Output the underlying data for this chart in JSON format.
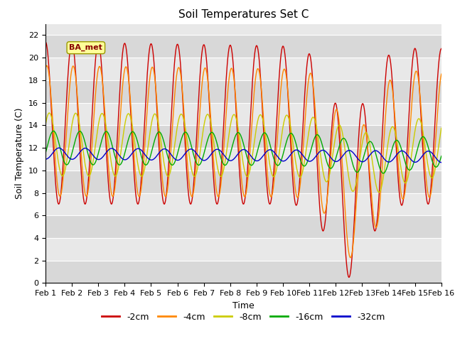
{
  "title": "Soil Temperatures Set C",
  "xlabel": "Time",
  "ylabel": "Soil Temperature (C)",
  "ylim": [
    0,
    23
  ],
  "yticks": [
    0,
    2,
    4,
    6,
    8,
    10,
    12,
    14,
    16,
    18,
    20,
    22
  ],
  "x_labels": [
    "Feb 1",
    "Feb 2",
    "Feb 3",
    "Feb 4",
    "Feb 5",
    "Feb 6",
    "Feb 7",
    "Feb 8",
    "Feb 9",
    "Feb 10",
    "Feb 11",
    "Feb 12",
    "Feb 13",
    "Feb 14",
    "Feb 15",
    "Feb 16"
  ],
  "colors": {
    "-2cm": "#cc0000",
    "-4cm": "#ff8800",
    "-8cm": "#cccc00",
    "-16cm": "#00aa00",
    "-32cm": "#0000cc"
  },
  "legend_label_order": [
    "-2cm",
    "-4cm",
    "-8cm",
    "-16cm",
    "-32cm"
  ],
  "annotation_text": "BA_met",
  "annotation_bbox_facecolor": "#ffff99",
  "annotation_bbox_edgecolor": "#999900",
  "annotation_text_color": "#880000",
  "plot_bg_color": "#e8e8e8",
  "grid_color": "#ffffff",
  "title_fontsize": 11,
  "axis_label_fontsize": 9,
  "tick_fontsize": 8
}
